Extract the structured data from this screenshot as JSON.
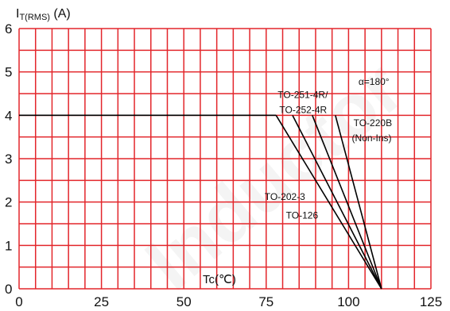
{
  "chart_data": {
    "type": "line",
    "ylabel_main": "I",
    "ylabel_sub": "T(RMS)",
    "ylabel_unit": "(A)",
    "xlabel": "Tc(℃)",
    "xlim": [
      0,
      125
    ],
    "ylim": [
      0,
      6
    ],
    "x_ticks": [
      "0",
      "25",
      "50",
      "75",
      "100",
      "125"
    ],
    "y_ticks": [
      "0",
      "1",
      "2",
      "3",
      "4",
      "5",
      "6"
    ],
    "grid": true,
    "grid_color": "#e3262b",
    "line_color": "#000000",
    "flat_segment": {
      "x": [
        0,
        78
      ],
      "y": [
        4,
        4
      ]
    },
    "series": [
      {
        "name": "TO-202-3",
        "x": [
          78,
          110
        ],
        "y": [
          4,
          0
        ]
      },
      {
        "name": "TO-126",
        "x": [
          83,
          110
        ],
        "y": [
          4,
          0
        ]
      },
      {
        "name": "TO-251-4R/TO-252-4R",
        "x": [
          89,
          110
        ],
        "y": [
          4,
          0
        ]
      },
      {
        "name": "TO-220B (Non-Ins)",
        "x": [
          96,
          110
        ],
        "y": [
          4,
          0
        ]
      }
    ],
    "annotations": [
      {
        "text": "α=180°",
        "x": 103,
        "y": 4.7
      },
      {
        "text": "TO-251-4R/",
        "x": 78.5,
        "y": 4.4
      },
      {
        "text": "TO-252-4R",
        "x": 79,
        "y": 4.05
      },
      {
        "text": "TO-220B",
        "x": 101.5,
        "y": 3.75
      },
      {
        "text": "(Non-Ins)",
        "x": 101,
        "y": 3.4
      },
      {
        "text": "TO-202-3",
        "x": 74.5,
        "y": 2.05
      },
      {
        "text": "TO-126",
        "x": 81,
        "y": 1.62
      }
    ]
  },
  "watermark": "Inductor"
}
